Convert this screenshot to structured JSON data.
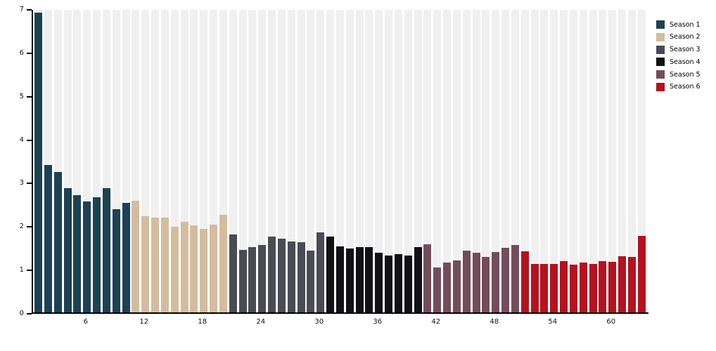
{
  "chart_data": {
    "type": "bar",
    "title": "",
    "xlabel": "",
    "ylabel": "",
    "ylim": [
      0,
      7
    ],
    "yticks": [
      0,
      1,
      2,
      3,
      4,
      5,
      6,
      7
    ],
    "xticks": [
      6,
      12,
      18,
      24,
      30,
      36,
      42,
      48,
      54,
      60
    ],
    "x_is_episode_number": true,
    "grid": "vertical-column-bands",
    "band_color": "#f0f0f0",
    "legend_position": "top-right-outside",
    "series": [
      {
        "name": "Season 1",
        "color": "#1d4254",
        "values": [
          6.9,
          3.4,
          3.23,
          2.86,
          2.7,
          2.56,
          2.65,
          2.86,
          2.37,
          2.52
        ]
      },
      {
        "name": "Season 2",
        "color": "#d4bc9f",
        "values": [
          2.57,
          2.22,
          2.19,
          2.19,
          1.97,
          2.08,
          2.01,
          1.92,
          2.02,
          2.24
        ]
      },
      {
        "name": "Season 3",
        "color": "#4b4b55",
        "values": [
          1.79,
          1.44,
          1.5,
          1.55,
          1.74,
          1.7,
          1.63,
          1.61,
          1.43,
          1.84
        ]
      },
      {
        "name": "Season 4",
        "color": "#111115",
        "values": [
          1.74,
          1.52,
          1.47,
          1.5,
          1.5,
          1.38,
          1.31,
          1.34,
          1.31,
          1.5
        ]
      },
      {
        "name": "Season 5",
        "color": "#744d5b",
        "values": [
          1.57,
          1.03,
          1.15,
          1.19,
          1.43,
          1.38,
          1.27,
          1.39,
          1.48,
          1.56
        ]
      },
      {
        "name": "Season 6",
        "color": "#b4121f",
        "values": [
          1.4,
          1.12,
          1.12,
          1.12,
          1.18,
          1.1,
          1.15,
          1.12,
          1.18,
          1.16,
          1.3,
          1.27,
          1.77
        ]
      }
    ]
  },
  "legend": {
    "items": [
      {
        "label": "Season 1",
        "color": "#1d4254"
      },
      {
        "label": "Season 2",
        "color": "#d4bc9f"
      },
      {
        "label": "Season 3",
        "color": "#4b4b55"
      },
      {
        "label": "Season 4",
        "color": "#111115"
      },
      {
        "label": "Season 5",
        "color": "#744d5b"
      },
      {
        "label": "Season 6",
        "color": "#b4121f"
      }
    ]
  }
}
